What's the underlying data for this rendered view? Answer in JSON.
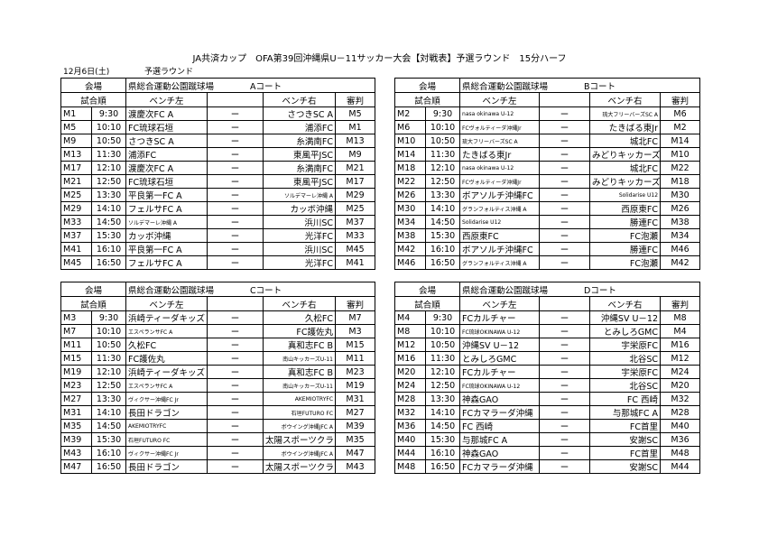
{
  "title": "JA共済カップ　OFA第39回沖縄県U－11サッカー大会【対戦表】予選ラウンド　15分ハーフ",
  "date": "12月6日(土)",
  "round": "予選ラウンド",
  "tables": [
    {
      "venue_label": "会場",
      "venue": "県総合運動公園蹴球場",
      "court": "Aコート",
      "headers": [
        "試合順",
        "ベンチ左",
        "ベンチ右",
        "審判"
      ],
      "rows": [
        [
          "M1",
          "9:30",
          "渡慶次FC A",
          "ー",
          "さつきSC A",
          "M5"
        ],
        [
          "M5",
          "10:10",
          "FC琉球石垣",
          "ー",
          "浦添FC",
          "M1"
        ],
        [
          "M9",
          "10:50",
          "さつきSC A",
          "ー",
          "糸満南FC",
          "M13"
        ],
        [
          "M13",
          "11:30",
          "浦添FC",
          "ー",
          "東風平JSC",
          "M9"
        ],
        [
          "M17",
          "12:10",
          "渡慶次FC A",
          "ー",
          "糸満南FC",
          "M21"
        ],
        [
          "M21",
          "12:50",
          "FC琉球石垣",
          "ー",
          "東風平JSC",
          "M17"
        ],
        [
          "M25",
          "13:30",
          "平良第一FC A",
          "ー",
          "ソルデマーレ沖縄 A",
          "M29"
        ],
        [
          "M29",
          "14:10",
          "フェルサFC A",
          "ー",
          "カッボ沖縄",
          "M25"
        ],
        [
          "M33",
          "14:50",
          "ソルデマーレ沖縄 A",
          "ー",
          "浜川SC",
          "M37"
        ],
        [
          "M37",
          "15:30",
          "カッボ沖縄",
          "ー",
          "光洋FC",
          "M33"
        ],
        [
          "M41",
          "16:10",
          "平良第一FC A",
          "ー",
          "浜川SC",
          "M45"
        ],
        [
          "M45",
          "16:50",
          "フェルサFC A",
          "ー",
          "光洋FC",
          "M41"
        ]
      ]
    },
    {
      "venue_label": "会場",
      "venue": "県総合運動公園蹴球場",
      "court": "Bコート",
      "headers": [
        "試合順",
        "ベンチ左",
        "ベンチ右",
        "審判"
      ],
      "rows": [
        [
          "M2",
          "9:30",
          "nasa okinawa U-12",
          "ー",
          "琉大フリーバーズSC A",
          "M6"
        ],
        [
          "M6",
          "10:10",
          "FCヴォルティーダ沖縄Jr",
          "ー",
          "たきばる東Jr",
          "M2"
        ],
        [
          "M10",
          "10:50",
          "琉大フリーバーズSC A",
          "ー",
          "城北FC",
          "M14"
        ],
        [
          "M14",
          "11:30",
          "たきばる東Jr",
          "ー",
          "みどりキッカーズ",
          "M10"
        ],
        [
          "M18",
          "12:10",
          "nasa okinawa U-12",
          "ー",
          "城北FC",
          "M22"
        ],
        [
          "M22",
          "12:50",
          "FCヴォルティーダ沖縄Jr",
          "ー",
          "みどりキッカーズ",
          "M18"
        ],
        [
          "M26",
          "13:30",
          "ボアソルチ沖縄FC",
          "ー",
          "Solidarise U12",
          "M30"
        ],
        [
          "M30",
          "14:10",
          "グランフォルティス沖縄 A",
          "ー",
          "西原東FC",
          "M26"
        ],
        [
          "M34",
          "14:50",
          "Solidarise U12",
          "ー",
          "勝連FC",
          "M38"
        ],
        [
          "M38",
          "15:30",
          "西原東FC",
          "ー",
          "FC泡瀬",
          "M34"
        ],
        [
          "M42",
          "16:10",
          "ボアソルチ沖縄FC",
          "ー",
          "勝連FC",
          "M46"
        ],
        [
          "M46",
          "16:50",
          "グランフォルティス沖縄 A",
          "ー",
          "FC泡瀬",
          "M42"
        ]
      ]
    },
    {
      "venue_label": "会場",
      "venue": "県総合運動公園蹴球場",
      "court": "Cコート",
      "headers": [
        "試合順",
        "ベンチ左",
        "ベンチ右",
        "審判"
      ],
      "rows": [
        [
          "M3",
          "9:30",
          "浜崎ティーダキッズ",
          "ー",
          "久松FC",
          "M7"
        ],
        [
          "M7",
          "10:10",
          "エスペランサFC A",
          "ー",
          "FC護佐丸",
          "M3"
        ],
        [
          "M11",
          "10:50",
          "久松FC",
          "ー",
          "真和志FC B",
          "M15"
        ],
        [
          "M15",
          "11:30",
          "FC護佐丸",
          "ー",
          "南山キッカーズU-11",
          "M11"
        ],
        [
          "M19",
          "12:10",
          "浜崎ティーダキッズ",
          "ー",
          "真和志FC B",
          "M23"
        ],
        [
          "M23",
          "12:50",
          "エスペランサFC A",
          "ー",
          "南山キッカーズU-11",
          "M19"
        ],
        [
          "M27",
          "13:30",
          "ヴィクサー沖縄FC Jr",
          "ー",
          "AKEMIOTRYFC",
          "M31"
        ],
        [
          "M31",
          "14:10",
          "長田ドラゴン",
          "ー",
          "石垣FUTURO FC",
          "M27"
        ],
        [
          "M35",
          "14:50",
          "AKEMIOTRYFC",
          "ー",
          "ボウイング沖縄JFC A",
          "M39"
        ],
        [
          "M39",
          "15:30",
          "石垣FUTURO FC",
          "ー",
          "太陽スポーツクラブ",
          "M35"
        ],
        [
          "M43",
          "16:10",
          "ヴィクサー沖縄FC Jr",
          "ー",
          "ボウイング沖縄JFC A",
          "M47"
        ],
        [
          "M47",
          "16:50",
          "長田ドラゴン",
          "ー",
          "太陽スポーツクラブ",
          "M43"
        ]
      ]
    },
    {
      "venue_label": "会場",
      "venue": "県総合運動公園蹴球場",
      "court": "Dコート",
      "headers": [
        "試合順",
        "ベンチ左",
        "ベンチ右",
        "審判"
      ],
      "rows": [
        [
          "M4",
          "9:30",
          "FCカルチャー",
          "ー",
          "沖縄SV U－12",
          "M8"
        ],
        [
          "M8",
          "10:10",
          "FC琉球OKINAWA U-12",
          "ー",
          "とみしろGMC",
          "M4"
        ],
        [
          "M12",
          "10:50",
          "沖縄SV U－12",
          "ー",
          "宇栄原FC",
          "M16"
        ],
        [
          "M16",
          "11:30",
          "とみしろGMC",
          "ー",
          "北谷SC",
          "M12"
        ],
        [
          "M20",
          "12:10",
          "FCカルチャー",
          "ー",
          "宇栄原FC",
          "M24"
        ],
        [
          "M24",
          "12:50",
          "FC琉球OKINAWA U-12",
          "ー",
          "北谷SC",
          "M20"
        ],
        [
          "M28",
          "13:30",
          "神森GAO",
          "ー",
          "FC 西崎",
          "M32"
        ],
        [
          "M32",
          "14:10",
          "FCカマラーダ沖縄",
          "ー",
          "与那城FC A",
          "M28"
        ],
        [
          "M36",
          "14:50",
          "FC 西崎",
          "ー",
          "FC首里",
          "M40"
        ],
        [
          "M40",
          "15:30",
          "与那城FC A",
          "ー",
          "安謝SC",
          "M36"
        ],
        [
          "M44",
          "16:10",
          "神森GAO",
          "ー",
          "FC首里",
          "M48"
        ],
        [
          "M48",
          "16:50",
          "FCカマラーダ沖縄",
          "ー",
          "安謝SC",
          "M44"
        ]
      ]
    }
  ]
}
